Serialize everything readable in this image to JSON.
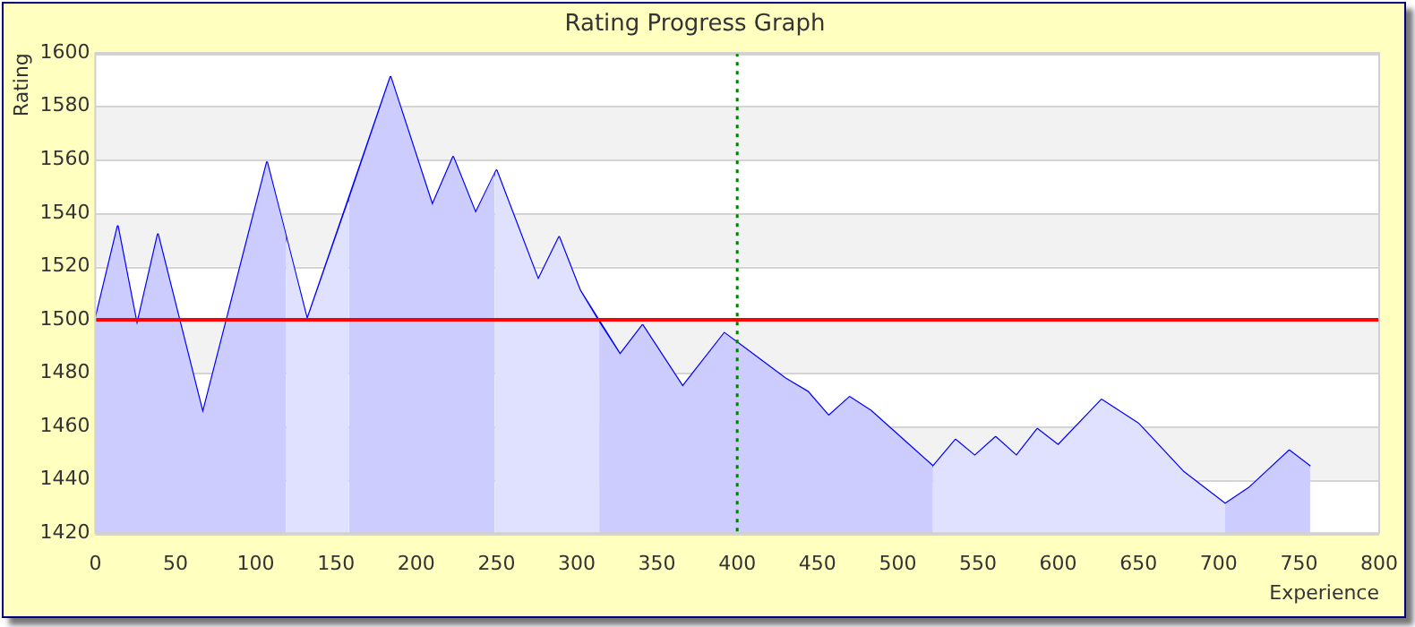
{
  "chart_data": {
    "type": "line",
    "title": "Rating Progress Graph",
    "xlabel": "Experience",
    "ylabel": "Rating",
    "x": [
      0,
      14,
      26,
      39,
      67,
      107,
      132,
      184,
      210,
      223,
      237,
      250,
      276,
      289,
      302,
      327,
      341,
      366,
      392,
      401,
      430,
      444,
      457,
      470,
      483,
      522,
      536,
      548,
      561,
      574,
      587,
      600,
      627,
      650,
      678,
      704,
      719,
      744,
      757
    ],
    "series": [
      {
        "type": "area",
        "color": "#ccccff",
        "x": [
          0,
          14,
          26,
          39,
          67,
          107,
          119
        ],
        "values": [
          1500,
          1535,
          1498,
          1532,
          1465,
          1559,
          1531
        ]
      },
      {
        "type": "area",
        "color": "#e0e0ff",
        "x": [
          119,
          132,
          158
        ],
        "values": [
          1531,
          1500,
          1545
        ]
      },
      {
        "type": "area",
        "color": "#ccccff",
        "x": [
          158,
          184,
          210,
          223,
          237,
          249
        ],
        "values": [
          1545,
          1591,
          1543,
          1561,
          1540,
          1555
        ]
      },
      {
        "type": "area",
        "color": "#e0e0ff",
        "x": [
          249,
          250,
          276,
          289,
          302,
          314
        ],
        "values": [
          1555,
          1556,
          1515,
          1531,
          1511,
          1499
        ]
      },
      {
        "type": "area",
        "color": "#ccccff",
        "x": [
          314,
          327,
          341,
          366,
          392,
          401,
          430,
          444,
          457,
          470,
          483,
          522
        ],
        "values": [
          1499,
          1487,
          1498,
          1475,
          1495,
          1491,
          1478,
          1473,
          1464,
          1471,
          1466,
          1445
        ]
      },
      {
        "type": "area",
        "color": "#e0e0ff",
        "x": [
          522,
          536,
          548,
          561,
          574,
          587,
          600,
          627,
          650,
          678,
          704
        ],
        "values": [
          1445,
          1455,
          1449,
          1456,
          1449,
          1459,
          1453,
          1470,
          1461,
          1443,
          1431
        ]
      },
      {
        "type": "area",
        "color": "#ccccff",
        "x": [
          704,
          719,
          744,
          757
        ],
        "values": [
          1431,
          1437,
          1451,
          1445
        ]
      },
      {
        "color": "#0000ff",
        "values": [
          1500,
          1535,
          1498,
          1532,
          1465,
          1559,
          1500,
          1591,
          1543,
          1561,
          1540,
          1556,
          1515,
          1531,
          1511,
          1487,
          1498,
          1475,
          1495,
          1491,
          1478,
          1473,
          1464,
          1471,
          1466,
          1445,
          1455,
          1449,
          1456,
          1449,
          1459,
          1453,
          1470,
          1461,
          1443,
          1431,
          1437,
          1451,
          1445
        ]
      }
    ],
    "xlim": [
      0,
      800
    ],
    "xticks": [
      0,
      50,
      100,
      150,
      200,
      250,
      300,
      350,
      400,
      450,
      500,
      550,
      600,
      650,
      700,
      750,
      800
    ],
    "ylim": [
      1420,
      1600
    ],
    "yticks": [
      1420,
      1440,
      1460,
      1480,
      1500,
      1520,
      1540,
      1560,
      1580,
      1600
    ],
    "grid": "y",
    "marker": "none",
    "line_style": "solid",
    "ref_lines": [
      {
        "axis": "y",
        "value": 1500,
        "color": "#ff0000",
        "line_style": "solid"
      },
      {
        "axis": "x",
        "value": 400,
        "color": "#008000",
        "line_style": "dotted"
      }
    ]
  }
}
